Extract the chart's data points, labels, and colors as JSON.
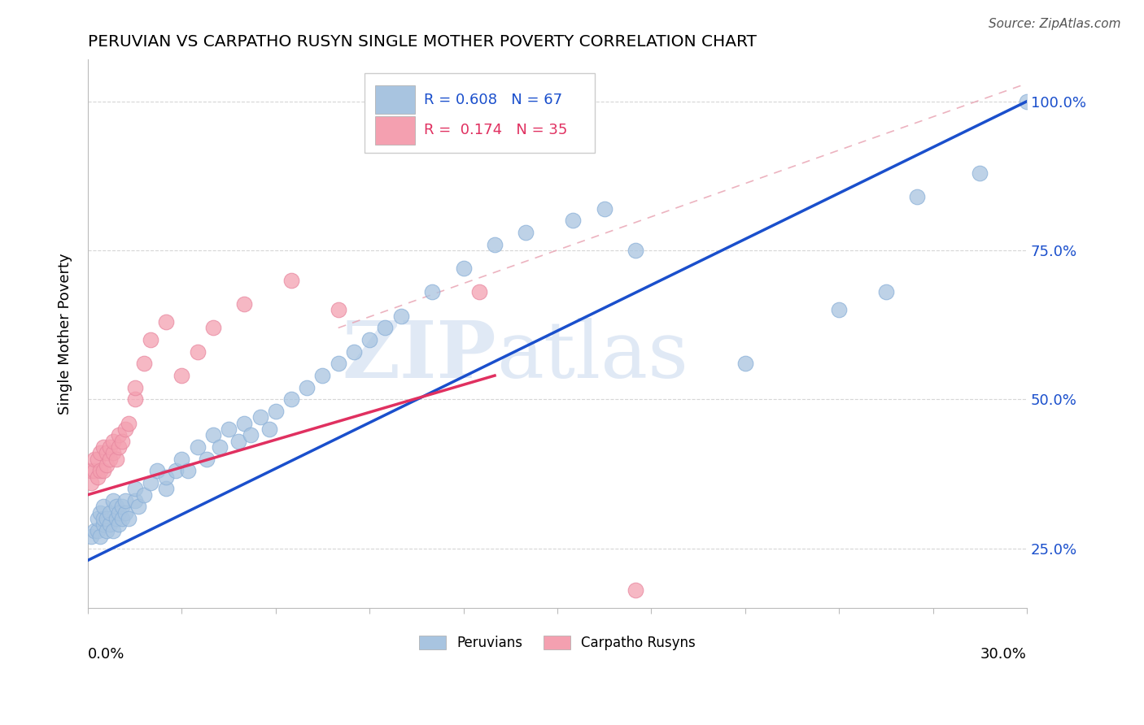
{
  "title": "PERUVIAN VS CARPATHO RUSYN SINGLE MOTHER POVERTY CORRELATION CHART",
  "source": "Source: ZipAtlas.com",
  "ylabel": "Single Mother Poverty",
  "blue_color": "#a8c4e0",
  "pink_color": "#f4a0b0",
  "blue_line_color": "#1a4fcc",
  "pink_line_color": "#e03060",
  "xlim": [
    0.0,
    0.3
  ],
  "ylim": [
    0.15,
    1.07
  ],
  "watermark_zip": "ZIP",
  "watermark_atlas": "atlas",
  "y_ticks": [
    0.25,
    0.5,
    0.75,
    1.0
  ],
  "y_tick_labels": [
    "25.0%",
    "50.0%",
    "75.0%",
    "100.0%"
  ],
  "blue_line_x": [
    0.0,
    0.3
  ],
  "blue_line_y": [
    0.23,
    1.0
  ],
  "pink_line_x": [
    0.0,
    0.13
  ],
  "pink_line_y": [
    0.34,
    0.54
  ],
  "dash_line_x": [
    0.08,
    0.3
  ],
  "dash_line_y": [
    0.62,
    1.03
  ],
  "blue_points_x": [
    0.001,
    0.002,
    0.003,
    0.003,
    0.004,
    0.004,
    0.005,
    0.005,
    0.005,
    0.006,
    0.006,
    0.007,
    0.007,
    0.008,
    0.008,
    0.009,
    0.009,
    0.01,
    0.01,
    0.011,
    0.011,
    0.012,
    0.012,
    0.013,
    0.015,
    0.015,
    0.016,
    0.018,
    0.02,
    0.022,
    0.025,
    0.025,
    0.028,
    0.03,
    0.032,
    0.035,
    0.038,
    0.04,
    0.042,
    0.045,
    0.048,
    0.05,
    0.052,
    0.055,
    0.058,
    0.06,
    0.065,
    0.07,
    0.075,
    0.08,
    0.085,
    0.09,
    0.095,
    0.1,
    0.11,
    0.12,
    0.13,
    0.14,
    0.155,
    0.165,
    0.175,
    0.21,
    0.24,
    0.255,
    0.265,
    0.285,
    0.3
  ],
  "blue_points_y": [
    0.27,
    0.28,
    0.28,
    0.3,
    0.27,
    0.31,
    0.29,
    0.3,
    0.32,
    0.28,
    0.3,
    0.29,
    0.31,
    0.28,
    0.33,
    0.3,
    0.32,
    0.29,
    0.31,
    0.3,
    0.32,
    0.31,
    0.33,
    0.3,
    0.33,
    0.35,
    0.32,
    0.34,
    0.36,
    0.38,
    0.35,
    0.37,
    0.38,
    0.4,
    0.38,
    0.42,
    0.4,
    0.44,
    0.42,
    0.45,
    0.43,
    0.46,
    0.44,
    0.47,
    0.45,
    0.48,
    0.5,
    0.52,
    0.54,
    0.56,
    0.58,
    0.6,
    0.62,
    0.64,
    0.68,
    0.72,
    0.76,
    0.78,
    0.8,
    0.82,
    0.75,
    0.56,
    0.65,
    0.68,
    0.84,
    0.88,
    1.0
  ],
  "pink_points_x": [
    0.001,
    0.001,
    0.002,
    0.002,
    0.003,
    0.003,
    0.004,
    0.004,
    0.005,
    0.005,
    0.006,
    0.006,
    0.007,
    0.007,
    0.008,
    0.008,
    0.009,
    0.01,
    0.01,
    0.011,
    0.012,
    0.013,
    0.015,
    0.015,
    0.018,
    0.02,
    0.025,
    0.03,
    0.035,
    0.04,
    0.05,
    0.065,
    0.08,
    0.125,
    0.175
  ],
  "pink_points_y": [
    0.36,
    0.38,
    0.38,
    0.4,
    0.37,
    0.4,
    0.38,
    0.41,
    0.38,
    0.42,
    0.39,
    0.41,
    0.4,
    0.42,
    0.41,
    0.43,
    0.4,
    0.42,
    0.44,
    0.43,
    0.45,
    0.46,
    0.5,
    0.52,
    0.56,
    0.6,
    0.63,
    0.54,
    0.58,
    0.62,
    0.66,
    0.7,
    0.65,
    0.68,
    0.18
  ]
}
